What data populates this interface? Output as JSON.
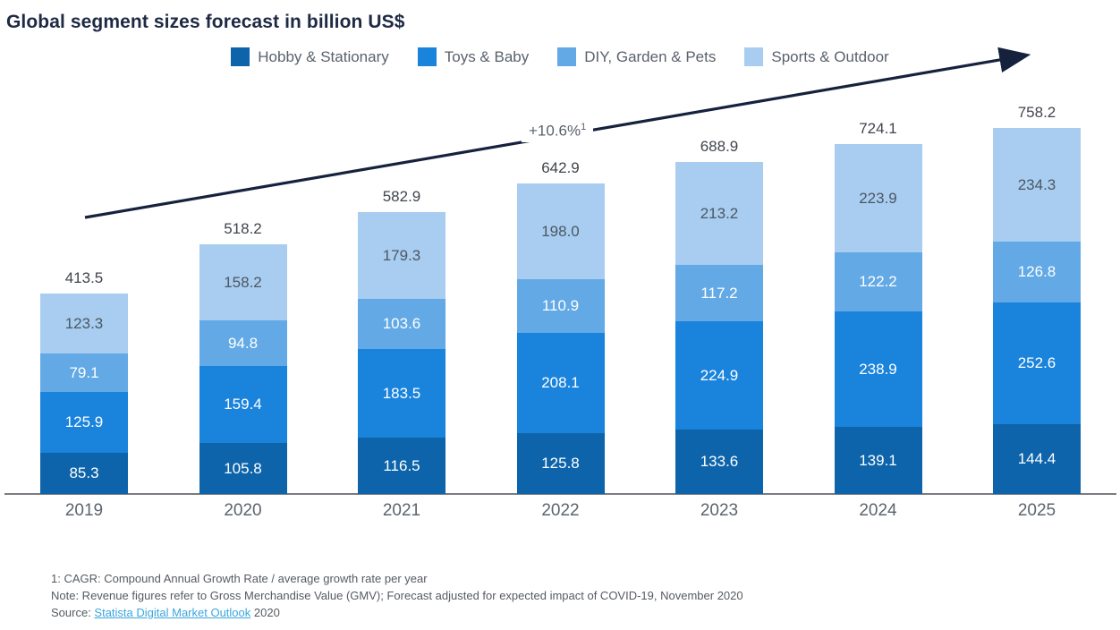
{
  "title": "Global segment sizes forecast in billion US$",
  "growth_annotation": {
    "text": "+10.6%",
    "superscript": "1"
  },
  "footnotes": {
    "line1": "1: CAGR: Compound Annual Growth Rate / average growth rate per year",
    "line2": "Note: Revenue figures refer to Gross Merchandise Value (GMV); Forecast adjusted for expected impact of COVID-19, November 2020",
    "source_prefix": "Source: ",
    "source_link": "Statista Digital Market Outlook",
    "source_suffix": " 2020"
  },
  "colors": {
    "title": "#1e2a44",
    "arrow": "#16223d",
    "axis_line": "#797d82",
    "total_label": "#40454c",
    "year_label": "#5d646e",
    "legend_label": "#5a626d",
    "footnote_text": "#565b61",
    "source_link": "#3ba6de"
  },
  "chart_data": {
    "type": "bar",
    "stacked": true,
    "title": "Global segment sizes forecast in billion US$",
    "legend_position": "top",
    "annotation": "+10.6% CAGR",
    "categories": [
      "2019",
      "2020",
      "2021",
      "2022",
      "2023",
      "2024",
      "2025"
    ],
    "series": [
      {
        "name": "Hobby & Stationary",
        "color": "#0d64ab",
        "value_label_color": "#ffffff",
        "values": [
          85.3,
          105.8,
          116.5,
          125.8,
          133.6,
          139.1,
          144.4
        ]
      },
      {
        "name": "Toys & Baby",
        "color": "#1a83dc",
        "value_label_color": "#ffffff",
        "values": [
          125.9,
          159.4,
          183.5,
          208.1,
          224.9,
          238.9,
          252.6
        ]
      },
      {
        "name": "DIY, Garden & Pets",
        "color": "#62a9e6",
        "value_label_color": "#ffffff",
        "values": [
          79.1,
          94.8,
          103.6,
          110.9,
          117.2,
          122.2,
          126.8
        ]
      },
      {
        "name": "Sports & Outdoor",
        "color": "#a8cdf0",
        "value_label_color": "#4c5763",
        "values": [
          123.3,
          158.2,
          179.3,
          198.0,
          213.2,
          223.9,
          234.3
        ]
      }
    ],
    "totals": [
      413.5,
      518.2,
      582.9,
      642.9,
      688.9,
      724.1,
      758.2
    ],
    "unit": "billion US$"
  }
}
